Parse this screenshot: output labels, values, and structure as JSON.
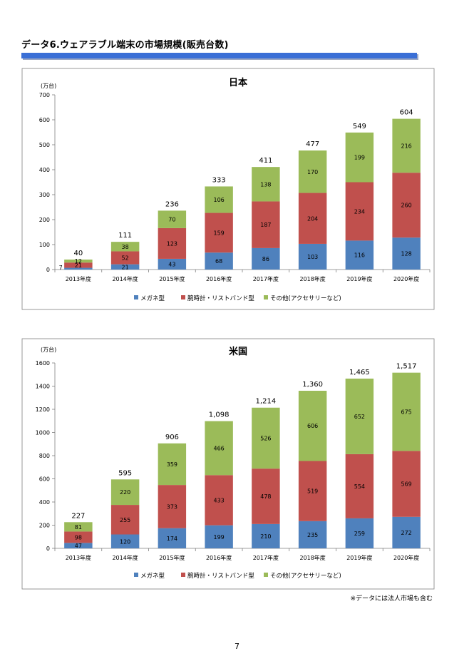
{
  "page": {
    "title": "データ6.ウェアラブル端末の市場規模(販売台数)",
    "footnote": "※データには法人市場も含む",
    "page_number": "7"
  },
  "colors": {
    "series": [
      "#4f81bd",
      "#c0504d",
      "#9bbb59"
    ],
    "title_bar": "#3a6fd6"
  },
  "chart_data": [
    {
      "type": "bar",
      "stacked": true,
      "title": "日本",
      "unit": "(万台)",
      "categories": [
        "2013年度",
        "2014年度",
        "2015年度",
        "2016年度",
        "2017年度",
        "2018年度",
        "2019年度",
        "2020年度"
      ],
      "series": [
        {
          "name": "メガネ型",
          "values": [
            7,
            21,
            43,
            68,
            86,
            103,
            116,
            128
          ]
        },
        {
          "name": "腕時計・リストバンド型",
          "values": [
            21,
            52,
            123,
            159,
            187,
            204,
            234,
            260
          ]
        },
        {
          "name": "その他(アクセサリーなど)",
          "values": [
            12,
            38,
            70,
            106,
            138,
            170,
            199,
            216
          ]
        }
      ],
      "totals": [
        "40",
        "111",
        "236",
        "333",
        "411",
        "477",
        "549",
        "604"
      ],
      "ylim": [
        0,
        700
      ],
      "yticks": [
        0,
        100,
        200,
        300,
        400,
        500,
        600,
        700
      ],
      "ytick_labels": [
        "0",
        "100",
        "200",
        "300",
        "400",
        "500",
        "600",
        "700"
      ],
      "legend_position": "bottom"
    },
    {
      "type": "bar",
      "stacked": true,
      "title": "米国",
      "unit": "(万台)",
      "categories": [
        "2013年度",
        "2014年度",
        "2015年度",
        "2016年度",
        "2017年度",
        "2018年度",
        "2019年度",
        "2020年度"
      ],
      "series": [
        {
          "name": "メガネ型",
          "values": [
            47,
            120,
            174,
            199,
            210,
            235,
            259,
            272
          ]
        },
        {
          "name": "腕時計・リストバンド型",
          "values": [
            98,
            255,
            373,
            433,
            478,
            519,
            554,
            569
          ]
        },
        {
          "name": "その他(アクセサリーなど)",
          "values": [
            81,
            220,
            359,
            466,
            526,
            606,
            652,
            675
          ]
        }
      ],
      "totals": [
        "227",
        "595",
        "906",
        "1,098",
        "1,214",
        "1,360",
        "1,465",
        "1,517"
      ],
      "ylim": [
        0,
        1600
      ],
      "yticks": [
        0,
        200,
        400,
        600,
        800,
        1000,
        1200,
        1400,
        1600
      ],
      "ytick_labels": [
        "0",
        "200",
        "400",
        "600",
        "800",
        "1000",
        "1200",
        "1400",
        "1600"
      ],
      "legend_position": "bottom"
    }
  ]
}
